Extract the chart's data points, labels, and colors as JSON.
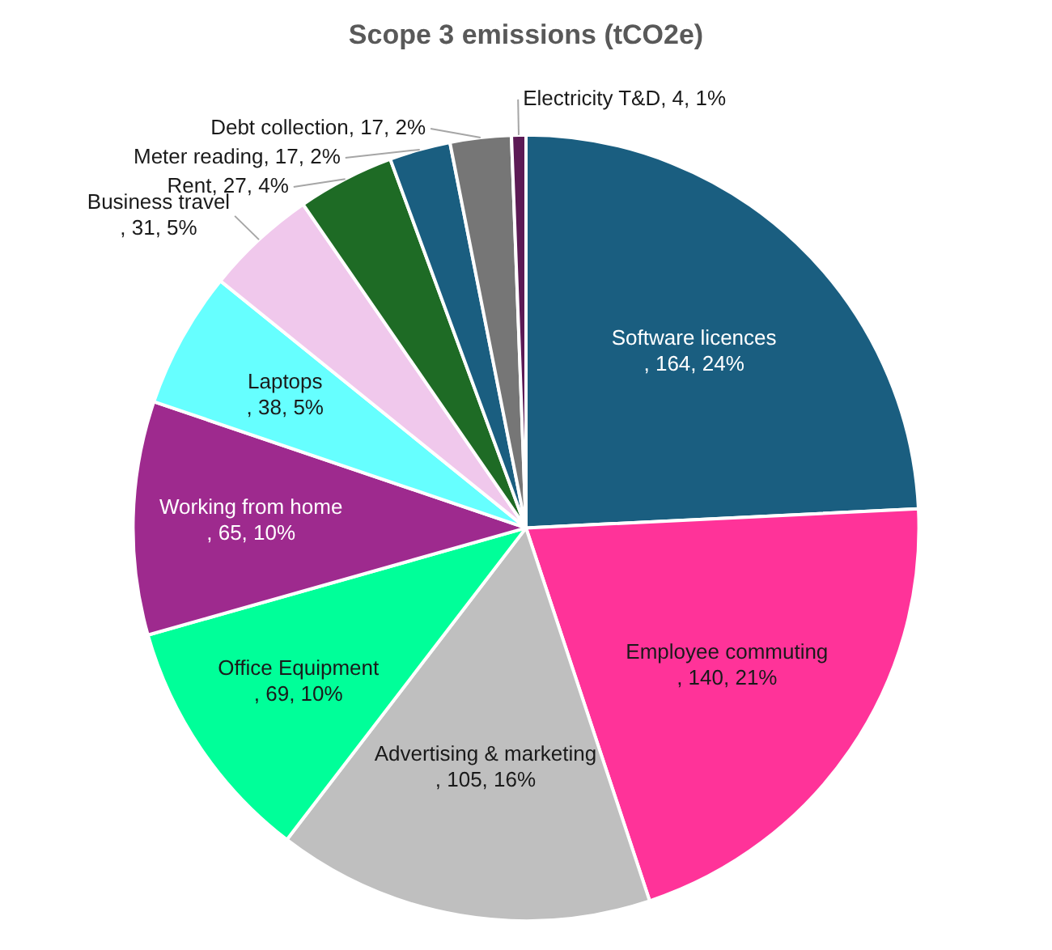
{
  "chart_data": {
    "type": "pie",
    "title": "Scope 3 emissions (tCO2e)",
    "categories": [
      "Software licences",
      "Employee commuting",
      "Advertising & marketing",
      "Office Equipment",
      "Working from home",
      "Laptops",
      "Business travel",
      "Rent",
      "Meter reading",
      "Debt collection",
      "Electricity T&D"
    ],
    "values": [
      164,
      140,
      105,
      69,
      65,
      38,
      31,
      27,
      17,
      17,
      4
    ],
    "value_labels": [
      ", 164, 24%",
      ", 140, 21%",
      ", 105, 16%",
      ", 69, 10%",
      ", 65, 10%",
      ", 38, 5%",
      ", 31, 5%",
      ", 27, 4%",
      ", 17, 2%",
      ", 17, 2%",
      ", 4, 1%"
    ],
    "colors": [
      "#1a5e80",
      "#ff3399",
      "#bfbfbf",
      "#00ff99",
      "#9e2a8e",
      "#66ffff",
      "#f0c8ec",
      "#1e6b25",
      "#1a5e80",
      "#767676",
      "#5c1a55"
    ],
    "legend": false
  }
}
